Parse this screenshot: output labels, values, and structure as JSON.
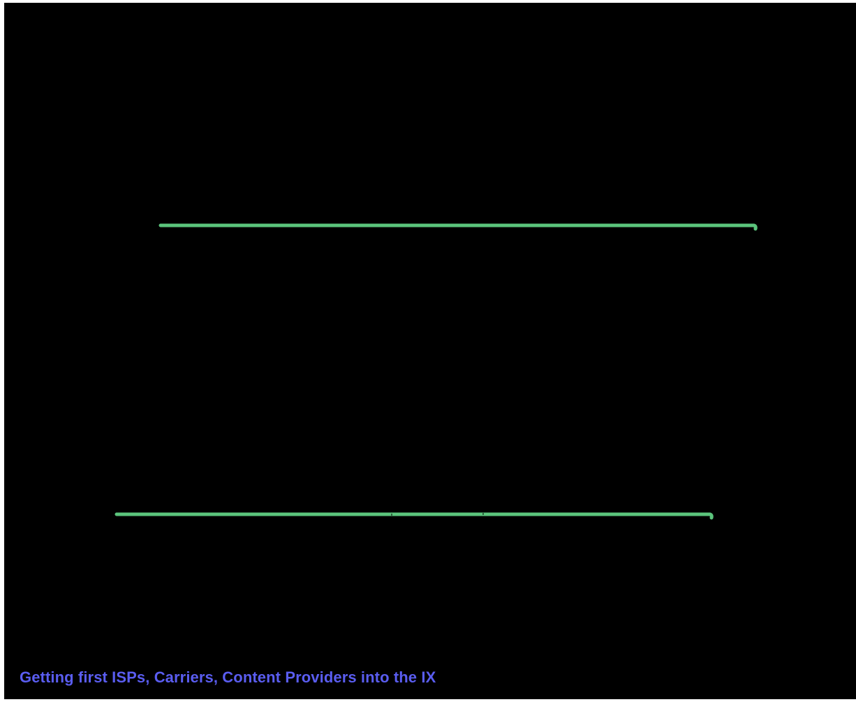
{
  "slide": {
    "background_color": "#000000",
    "stroke_color": "#5bc47c",
    "caption_color": "#5a5df0",
    "caption": "Getting first ISPs, Carriers, Content Providers into the IX"
  }
}
